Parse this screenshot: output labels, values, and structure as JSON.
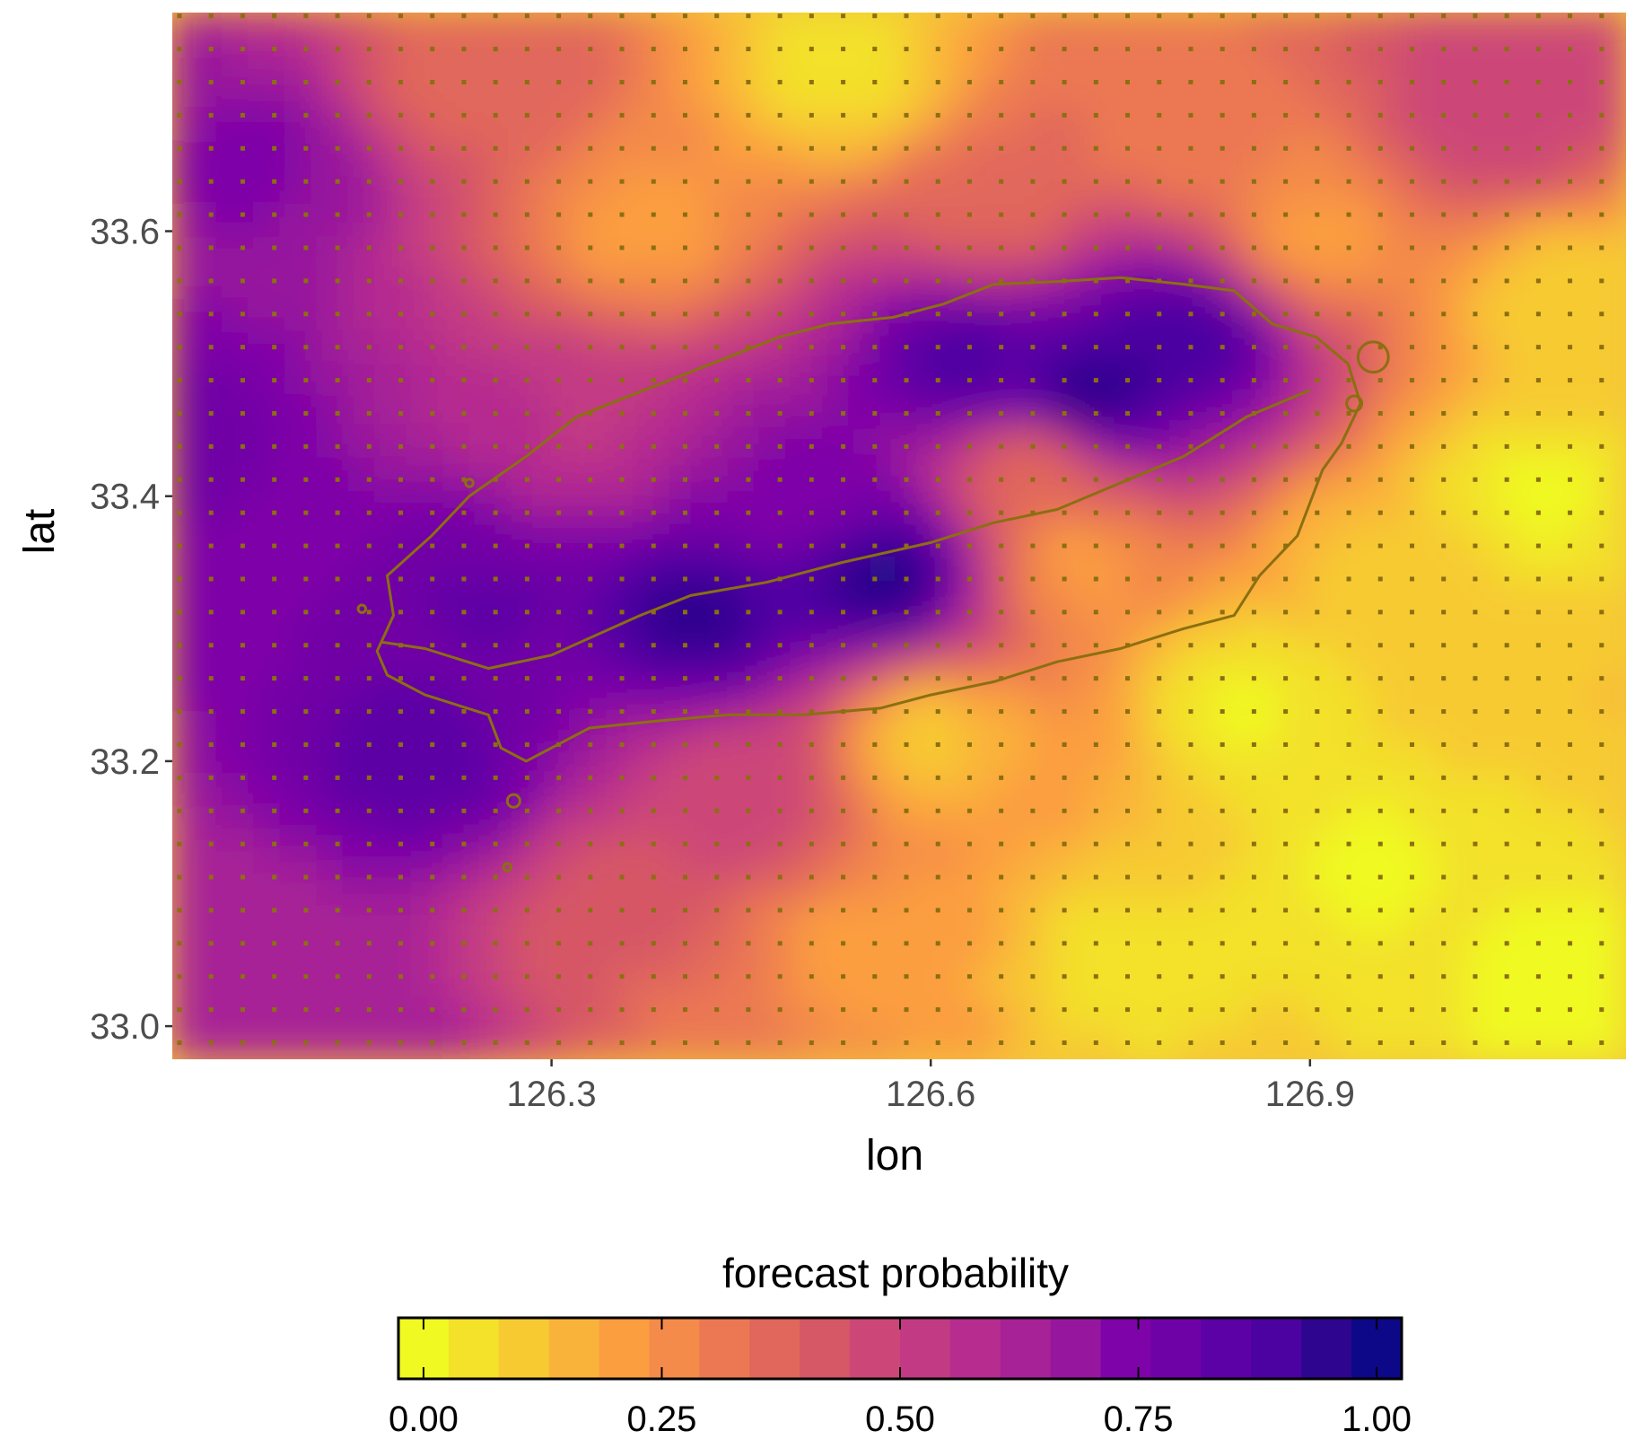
{
  "chart_data": {
    "type": "heatmap",
    "xlabel": "lon",
    "ylabel": "lat",
    "xlim": [
      126.0,
      127.15
    ],
    "ylim": [
      32.975,
      33.765
    ],
    "x_ticks": [
      126.3,
      126.6,
      126.9
    ],
    "x_tick_labels": [
      "126.3",
      "126.6",
      "126.9"
    ],
    "y_ticks": [
      33.0,
      33.2,
      33.4,
      33.6
    ],
    "y_tick_labels": [
      "33.0",
      "33.2",
      "33.4",
      "33.6"
    ],
    "grid": false,
    "colorscale": "plasma (reversed: yellow = 0, dark blue = 1)",
    "legend": {
      "title": "forecast probability",
      "position": "bottom",
      "range": [
        0,
        1
      ],
      "breaks": [
        0,
        0.25,
        0.5,
        0.75,
        1
      ],
      "break_labels": [
        "0.00",
        "0.25",
        "0.50",
        "0.75",
        "1.00"
      ],
      "colors": [
        "#F0F921",
        "#F3E12A",
        "#F7CA32",
        "#FAB33A",
        "#FB9E3F",
        "#F48B4A",
        "#EB7852",
        "#E1675C",
        "#D65766",
        "#CC4778",
        "#C23A84",
        "#B62C8F",
        "#A72197",
        "#96179D",
        "#7E03A8",
        "#6F02A6",
        "#5C01A6",
        "#4C02A1",
        "#2E058E",
        "#0D0887"
      ]
    },
    "field_centers": [
      {
        "lon": 126.0,
        "lat": 33.45,
        "p": 0.78
      },
      {
        "lon": 126.07,
        "lat": 33.65,
        "p": 0.72
      },
      {
        "lon": 126.05,
        "lat": 33.05,
        "p": 0.62
      },
      {
        "lon": 126.2,
        "lat": 33.2,
        "p": 0.85
      },
      {
        "lon": 126.25,
        "lat": 33.32,
        "p": 0.82
      },
      {
        "lon": 126.23,
        "lat": 33.72,
        "p": 0.38
      },
      {
        "lon": 126.33,
        "lat": 33.45,
        "p": 0.55
      },
      {
        "lon": 126.38,
        "lat": 33.6,
        "p": 0.22
      },
      {
        "lon": 126.42,
        "lat": 33.31,
        "p": 0.95
      },
      {
        "lon": 126.5,
        "lat": 33.4,
        "p": 0.72
      },
      {
        "lon": 126.53,
        "lat": 33.72,
        "p": 0.05
      },
      {
        "lon": 126.56,
        "lat": 33.34,
        "p": 0.98
      },
      {
        "lon": 126.45,
        "lat": 33.18,
        "p": 0.48
      },
      {
        "lon": 126.35,
        "lat": 33.08,
        "p": 0.4
      },
      {
        "lon": 126.55,
        "lat": 33.05,
        "p": 0.2
      },
      {
        "lon": 126.6,
        "lat": 33.22,
        "p": 0.12
      },
      {
        "lon": 126.63,
        "lat": 33.5,
        "p": 0.88
      },
      {
        "lon": 126.73,
        "lat": 33.48,
        "p": 0.97
      },
      {
        "lon": 126.8,
        "lat": 33.52,
        "p": 0.9
      },
      {
        "lon": 126.68,
        "lat": 33.42,
        "p": 0.35
      },
      {
        "lon": 126.72,
        "lat": 33.35,
        "p": 0.22
      },
      {
        "lon": 126.65,
        "lat": 33.62,
        "p": 0.35
      },
      {
        "lon": 126.8,
        "lat": 33.68,
        "p": 0.3
      },
      {
        "lon": 126.9,
        "lat": 33.6,
        "p": 0.22
      },
      {
        "lon": 126.85,
        "lat": 33.25,
        "p": 0.02
      },
      {
        "lon": 126.95,
        "lat": 33.12,
        "p": 0.02
      },
      {
        "lon": 126.75,
        "lat": 33.05,
        "p": 0.05
      },
      {
        "lon": 127.08,
        "lat": 33.4,
        "p": 0.02
      },
      {
        "lon": 126.95,
        "lat": 33.35,
        "p": 0.12
      },
      {
        "lon": 127.05,
        "lat": 33.68,
        "p": 0.48
      },
      {
        "lon": 127.12,
        "lat": 33.75,
        "p": 0.5
      },
      {
        "lon": 127.1,
        "lat": 33.55,
        "p": 0.08
      },
      {
        "lon": 127.12,
        "lat": 33.02,
        "p": 0.0
      },
      {
        "lon": 126.15,
        "lat": 32.98,
        "p": 0.65
      },
      {
        "lon": 126.45,
        "lat": 32.98,
        "p": 0.3
      }
    ],
    "coastline": [
      [
        126.162,
        33.283
      ],
      [
        126.175,
        33.31
      ],
      [
        126.17,
        33.34
      ],
      [
        126.205,
        33.37
      ],
      [
        126.235,
        33.4
      ],
      [
        126.28,
        33.43
      ],
      [
        126.32,
        33.46
      ],
      [
        126.36,
        33.475
      ],
      [
        126.4,
        33.49
      ],
      [
        126.44,
        33.505
      ],
      [
        126.48,
        33.52
      ],
      [
        126.52,
        33.53
      ],
      [
        126.57,
        33.535
      ],
      [
        126.61,
        33.545
      ],
      [
        126.65,
        33.56
      ],
      [
        126.7,
        33.562
      ],
      [
        126.75,
        33.565
      ],
      [
        126.8,
        33.56
      ],
      [
        126.84,
        33.555
      ],
      [
        126.87,
        33.53
      ],
      [
        126.905,
        33.52
      ],
      [
        126.93,
        33.5
      ],
      [
        126.94,
        33.47
      ],
      [
        126.925,
        33.44
      ],
      [
        126.91,
        33.42
      ],
      [
        126.89,
        33.37
      ],
      [
        126.86,
        33.34
      ],
      [
        126.84,
        33.31
      ],
      [
        126.8,
        33.3
      ],
      [
        126.75,
        33.285
      ],
      [
        126.7,
        33.275
      ],
      [
        126.65,
        33.26
      ],
      [
        126.6,
        33.25
      ],
      [
        126.56,
        33.24
      ],
      [
        126.5,
        33.235
      ],
      [
        126.44,
        33.235
      ],
      [
        126.38,
        33.23
      ],
      [
        126.33,
        33.225
      ],
      [
        126.28,
        33.2
      ],
      [
        126.26,
        33.21
      ],
      [
        126.25,
        33.235
      ],
      [
        126.2,
        33.25
      ],
      [
        126.17,
        33.265
      ]
    ],
    "interior_trail": [
      [
        126.9,
        33.48
      ],
      [
        126.85,
        33.46
      ],
      [
        126.8,
        33.43
      ],
      [
        126.75,
        33.41
      ],
      [
        126.7,
        33.39
      ],
      [
        126.65,
        33.38
      ],
      [
        126.6,
        33.365
      ],
      [
        126.53,
        33.35
      ],
      [
        126.47,
        33.335
      ],
      [
        126.41,
        33.325
      ],
      [
        126.37,
        33.31
      ],
      [
        126.3,
        33.28
      ],
      [
        126.25,
        33.27
      ],
      [
        126.2,
        33.285
      ],
      [
        126.165,
        33.29
      ]
    ],
    "islets": [
      {
        "lon": 126.95,
        "lat": 33.505,
        "r": 0.012
      },
      {
        "lon": 126.935,
        "lat": 33.47,
        "r": 0.006
      },
      {
        "lon": 126.27,
        "lat": 33.17,
        "r": 0.005
      },
      {
        "lon": 126.265,
        "lat": 33.12,
        "r": 0.003
      },
      {
        "lon": 126.235,
        "lat": 33.41,
        "r": 0.003
      },
      {
        "lon": 126.15,
        "lat": 33.315,
        "r": 0.003
      }
    ]
  }
}
